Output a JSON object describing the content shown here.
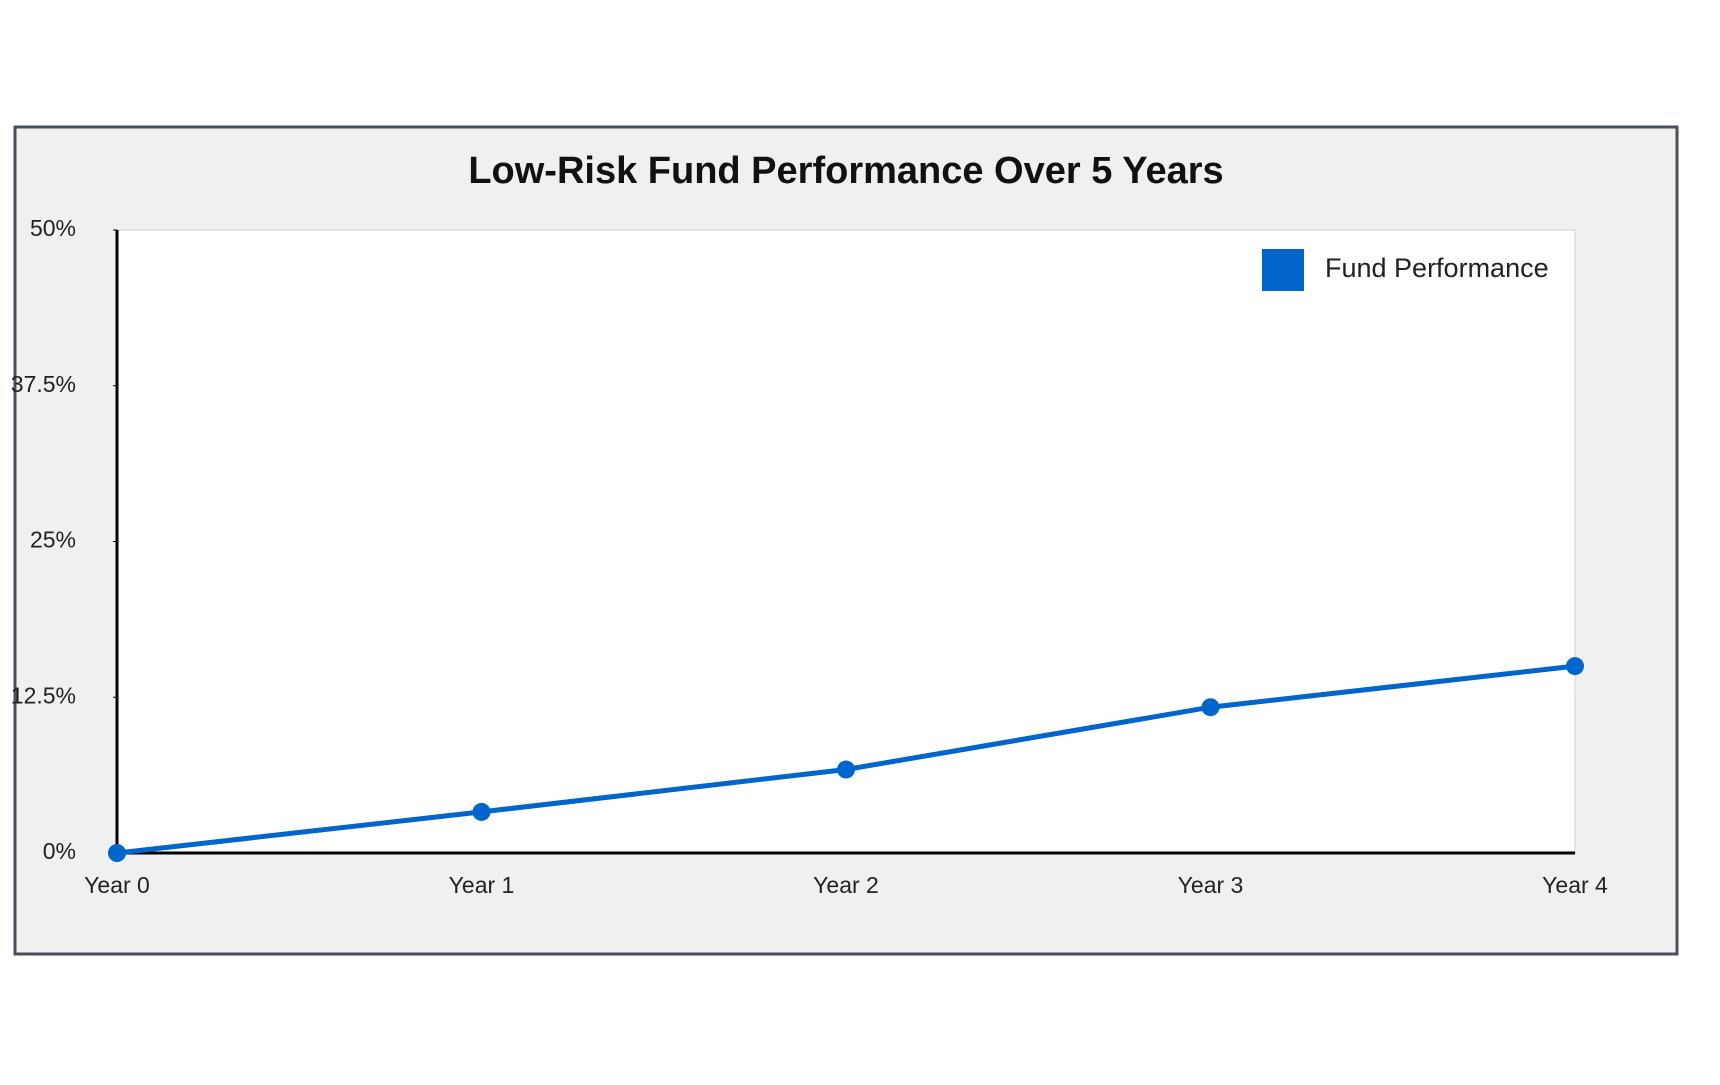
{
  "chart_data": {
    "type": "line",
    "title": "Low-Risk Fund Performance Over 5 Years",
    "categories": [
      "Year 0",
      "Year 1",
      "Year 2",
      "Year 3",
      "Year 4"
    ],
    "series": [
      {
        "name": "Fund Performance",
        "color": "#0066cc",
        "values": [
          0,
          3.3,
          6.7,
          11.7,
          15
        ]
      }
    ],
    "ylim": [
      0,
      50
    ],
    "yticks": [
      {
        "value": 0,
        "label": "0%"
      },
      {
        "value": 12.5,
        "label": "12.5%"
      },
      {
        "value": 25,
        "label": "25%"
      },
      {
        "value": 37.5,
        "label": "37.5%"
      },
      {
        "value": 50,
        "label": "50%"
      }
    ],
    "legend": "top-right"
  }
}
